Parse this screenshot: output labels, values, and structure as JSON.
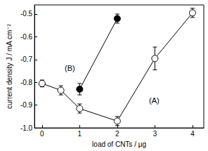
{
  "chart_data": {
    "type": "line",
    "x_label": "load of CNTs / μg",
    "y_label": "current density J / mA cm⁻²",
    "xlim": [
      -0.2,
      4.3
    ],
    "ylim": [
      -1.0,
      -0.46
    ],
    "xticks": [
      0,
      1,
      2,
      3,
      4
    ],
    "yticks": [
      {
        "value": -1.0,
        "label": "-1.0"
      },
      -0.9,
      -0.8,
      -0.7,
      -0.6,
      -0.5
    ],
    "grid": false,
    "series": [
      {
        "name": "(A)",
        "color": "#000000",
        "marker": "open_circle",
        "x": [
          0,
          0.5,
          1,
          2,
          3,
          4
        ],
        "values": [
          -0.805,
          -0.835,
          -0.915,
          -0.97,
          -0.695,
          -0.495
        ],
        "errors": [
          0.015,
          0.02,
          0.02,
          0.02,
          0.05,
          0.02
        ]
      },
      {
        "name": "(B)",
        "color": "#000000",
        "marker": "filled_circle",
        "x": [
          1,
          2
        ],
        "values": [
          -0.83,
          -0.52
        ],
        "errors": [
          0.025,
          0.02
        ]
      }
    ]
  }
}
